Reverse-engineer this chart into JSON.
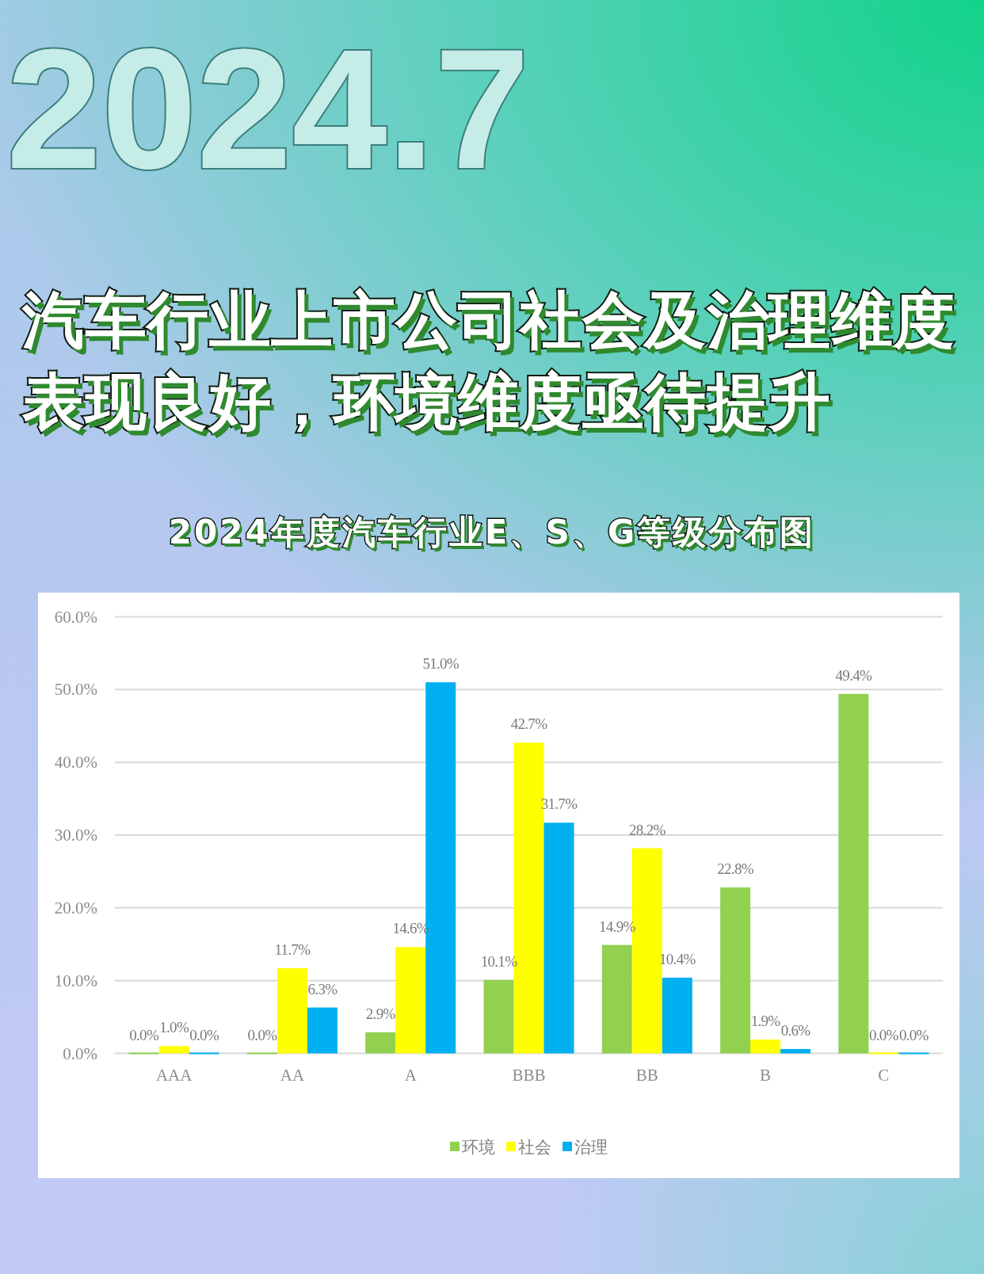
{
  "chart_data": {
    "type": "bar",
    "title": "汽车行业上市公司社会及治理维度表现良好，环境维度亟待提升",
    "subtitle": "2024年度汽车行业E、S、G等级分布图",
    "annotations": [
      "2024.7"
    ],
    "categories": [
      "AAA",
      "AA",
      "A",
      "BBB",
      "BB",
      "B",
      "C"
    ],
    "series": [
      {
        "name": "环境",
        "color": "#92d050",
        "values": [
          0.0,
          0.0,
          2.9,
          10.1,
          14.9,
          22.8,
          49.4
        ],
        "value_labels": [
          "0.0%",
          "0.0%",
          "2.9%",
          "10.1%",
          "14.9%",
          "22.8%",
          "49.4%"
        ]
      },
      {
        "name": "社会",
        "color": "#ffff00",
        "values": [
          1.0,
          11.7,
          14.6,
          42.7,
          28.2,
          1.9,
          0.0
        ],
        "value_labels": [
          "1.0%",
          "11.7%",
          "14.6%",
          "42.7%",
          "28.2%",
          "1.9%",
          "0.0%"
        ]
      },
      {
        "name": "治理",
        "color": "#00b0f0",
        "values": [
          0.0,
          6.3,
          51.0,
          31.7,
          10.4,
          0.6,
          0.0
        ],
        "value_labels": [
          "0.0%",
          "6.3%",
          "51.0%",
          "31.7%",
          "10.4%",
          "0.6%",
          "0.0%"
        ]
      }
    ],
    "ylim": [
      0,
      60
    ],
    "yticks": [
      {
        "value": 0,
        "label": "0.0%"
      },
      {
        "value": 10,
        "label": "10.0%"
      },
      {
        "value": 20,
        "label": "20.0%"
      },
      {
        "value": 30,
        "label": "30.0%"
      },
      {
        "value": 40,
        "label": "40.0%"
      },
      {
        "value": 50,
        "label": "50.0%"
      },
      {
        "value": 60,
        "label": "60.0%"
      }
    ],
    "grid": "y",
    "legend": "bottom"
  }
}
